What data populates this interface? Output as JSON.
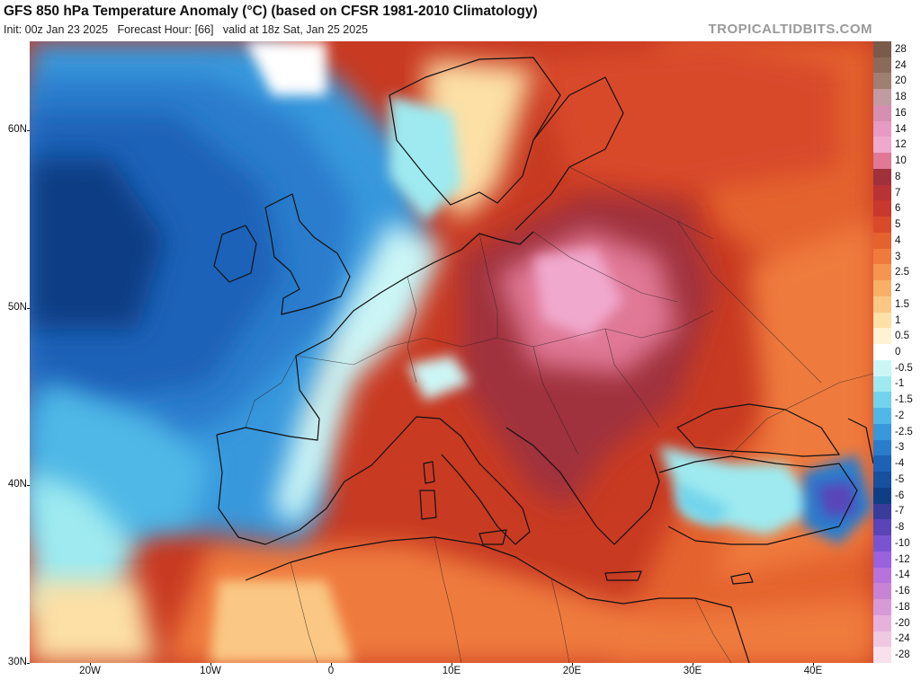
{
  "header": {
    "title": "GFS 850 hPa Temperature Anomaly (°C) (based on CFSR 1981-2010 Climatology)",
    "subtitle": "Init: 00z Jan 23 2025   Forecast Hour: [66]   valid at 18z Sat, Jan 25 2025",
    "credit": "TROPICALTIDBITS.COM"
  },
  "axes": {
    "lat_labels": [
      "60N",
      "50N",
      "40N",
      "30N"
    ],
    "lat_values": [
      60,
      50,
      40,
      30
    ],
    "lon_labels": [
      "20W",
      "10W",
      "0",
      "10E",
      "20E",
      "30E",
      "40E"
    ],
    "lon_values": [
      -20,
      -10,
      0,
      10,
      20,
      30,
      40
    ],
    "lon_range": [
      -25,
      45
    ],
    "lat_range": [
      30,
      65
    ]
  },
  "colorbar": {
    "levels": [
      {
        "label": "28",
        "color": "#7a5a4a"
      },
      {
        "label": "24",
        "color": "#8c6a5a"
      },
      {
        "label": "20",
        "color": "#a07e72"
      },
      {
        "label": "18",
        "color": "#c29aa2"
      },
      {
        "label": "16",
        "color": "#d58fb0"
      },
      {
        "label": "14",
        "color": "#e79ac3"
      },
      {
        "label": "12",
        "color": "#f0a8cc"
      },
      {
        "label": "10",
        "color": "#e07896"
      },
      {
        "label": "8",
        "color": "#a0303c"
      },
      {
        "label": "7",
        "color": "#b83236"
      },
      {
        "label": "6",
        "color": "#c8382e"
      },
      {
        "label": "5",
        "color": "#d84a2a"
      },
      {
        "label": "4",
        "color": "#e4622e"
      },
      {
        "label": "3",
        "color": "#ef7a3c"
      },
      {
        "label": "2.5",
        "color": "#f59650"
      },
      {
        "label": "2",
        "color": "#f8b068"
      },
      {
        "label": "1.5",
        "color": "#fac884"
      },
      {
        "label": "1",
        "color": "#fce0a6"
      },
      {
        "label": "0.5",
        "color": "#fef2d2"
      },
      {
        "label": "0",
        "color": "#ffffff"
      },
      {
        "label": "-0.5",
        "color": "#ccf6f6"
      },
      {
        "label": "-1",
        "color": "#9eeaf0"
      },
      {
        "label": "-1.5",
        "color": "#72d4ec"
      },
      {
        "label": "-2",
        "color": "#50b8e6"
      },
      {
        "label": "-2.5",
        "color": "#3898dc"
      },
      {
        "label": "-3",
        "color": "#2a7ccc"
      },
      {
        "label": "-4",
        "color": "#1e62b8"
      },
      {
        "label": "-5",
        "color": "#16509e"
      },
      {
        "label": "-6",
        "color": "#103e84"
      },
      {
        "label": "-7",
        "color": "#3a3c9c"
      },
      {
        "label": "-8",
        "color": "#5a44b8"
      },
      {
        "label": "-10",
        "color": "#7a54d0"
      },
      {
        "label": "-12",
        "color": "#9a62dc"
      },
      {
        "label": "-14",
        "color": "#b872dc"
      },
      {
        "label": "-16",
        "color": "#c884d4"
      },
      {
        "label": "-18",
        "color": "#d89ad6"
      },
      {
        "label": "-20",
        "color": "#e6b2dc"
      },
      {
        "label": "-24",
        "color": "#f0c8e2"
      },
      {
        "label": "-28",
        "color": "#f8e0ec"
      }
    ]
  },
  "map_colors": {
    "ocean_default": "#c83a22",
    "cold_deep": "#1a4f9e",
    "cold_mid": "#2a7ccc",
    "cold_light": "#72d4ec",
    "neutral": "#ffffff",
    "warm_light": "#fac884",
    "warm_mid": "#ef7a3c",
    "warm": "#d84a2a",
    "hot": "#b83236",
    "very_hot": "#a0303c",
    "pink": "#e07896",
    "light_pink": "#f0a8cc",
    "violet": "#5a44b8",
    "coastline": "#111111"
  }
}
